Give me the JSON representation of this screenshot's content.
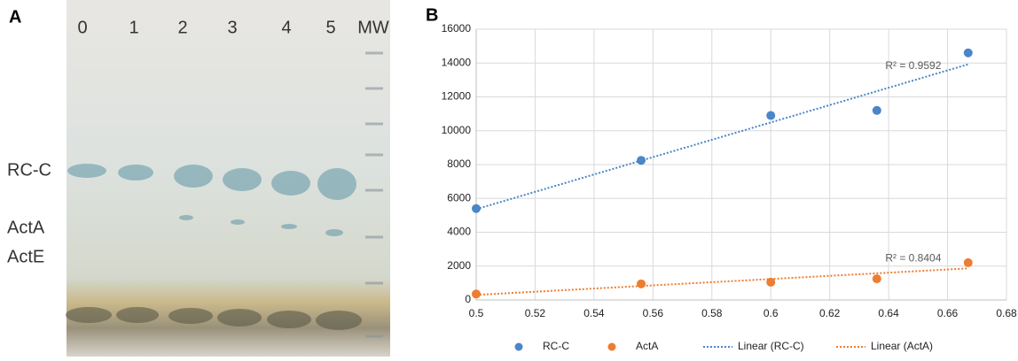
{
  "panel_labels": [
    "A",
    "B"
  ],
  "gel": {
    "lanes": [
      "0",
      "1",
      "2",
      "3",
      "4",
      "5",
      "MW"
    ],
    "bands": [
      "RC-C",
      "ActA",
      "ActE"
    ]
  },
  "chart_data": {
    "type": "scatter",
    "x": [
      0.5,
      0.556,
      0.6,
      0.636,
      0.667
    ],
    "series": [
      {
        "name": "RC-C",
        "color": "#4a86c8",
        "values": [
          5400,
          8250,
          10900,
          11200,
          14600
        ],
        "trendline_name": "Linear (RC-C)"
      },
      {
        "name": "ActA",
        "color": "#ed7d31",
        "values": [
          350,
          950,
          1050,
          1250,
          2200
        ],
        "trendline_name": "Linear (ActA)"
      }
    ],
    "annotations": [
      "R² = 0.9592",
      "R² = 0.8404"
    ],
    "xlim": [
      0.5,
      0.68
    ],
    "xticks": [
      0.5,
      0.52,
      0.54,
      0.56,
      0.58,
      0.6,
      0.62,
      0.64,
      0.66,
      0.68
    ],
    "ylim": [
      0,
      16000
    ],
    "yticks": [
      0,
      2000,
      4000,
      6000,
      8000,
      10000,
      12000,
      14000,
      16000
    ],
    "grid": true,
    "legend": "bottom"
  }
}
